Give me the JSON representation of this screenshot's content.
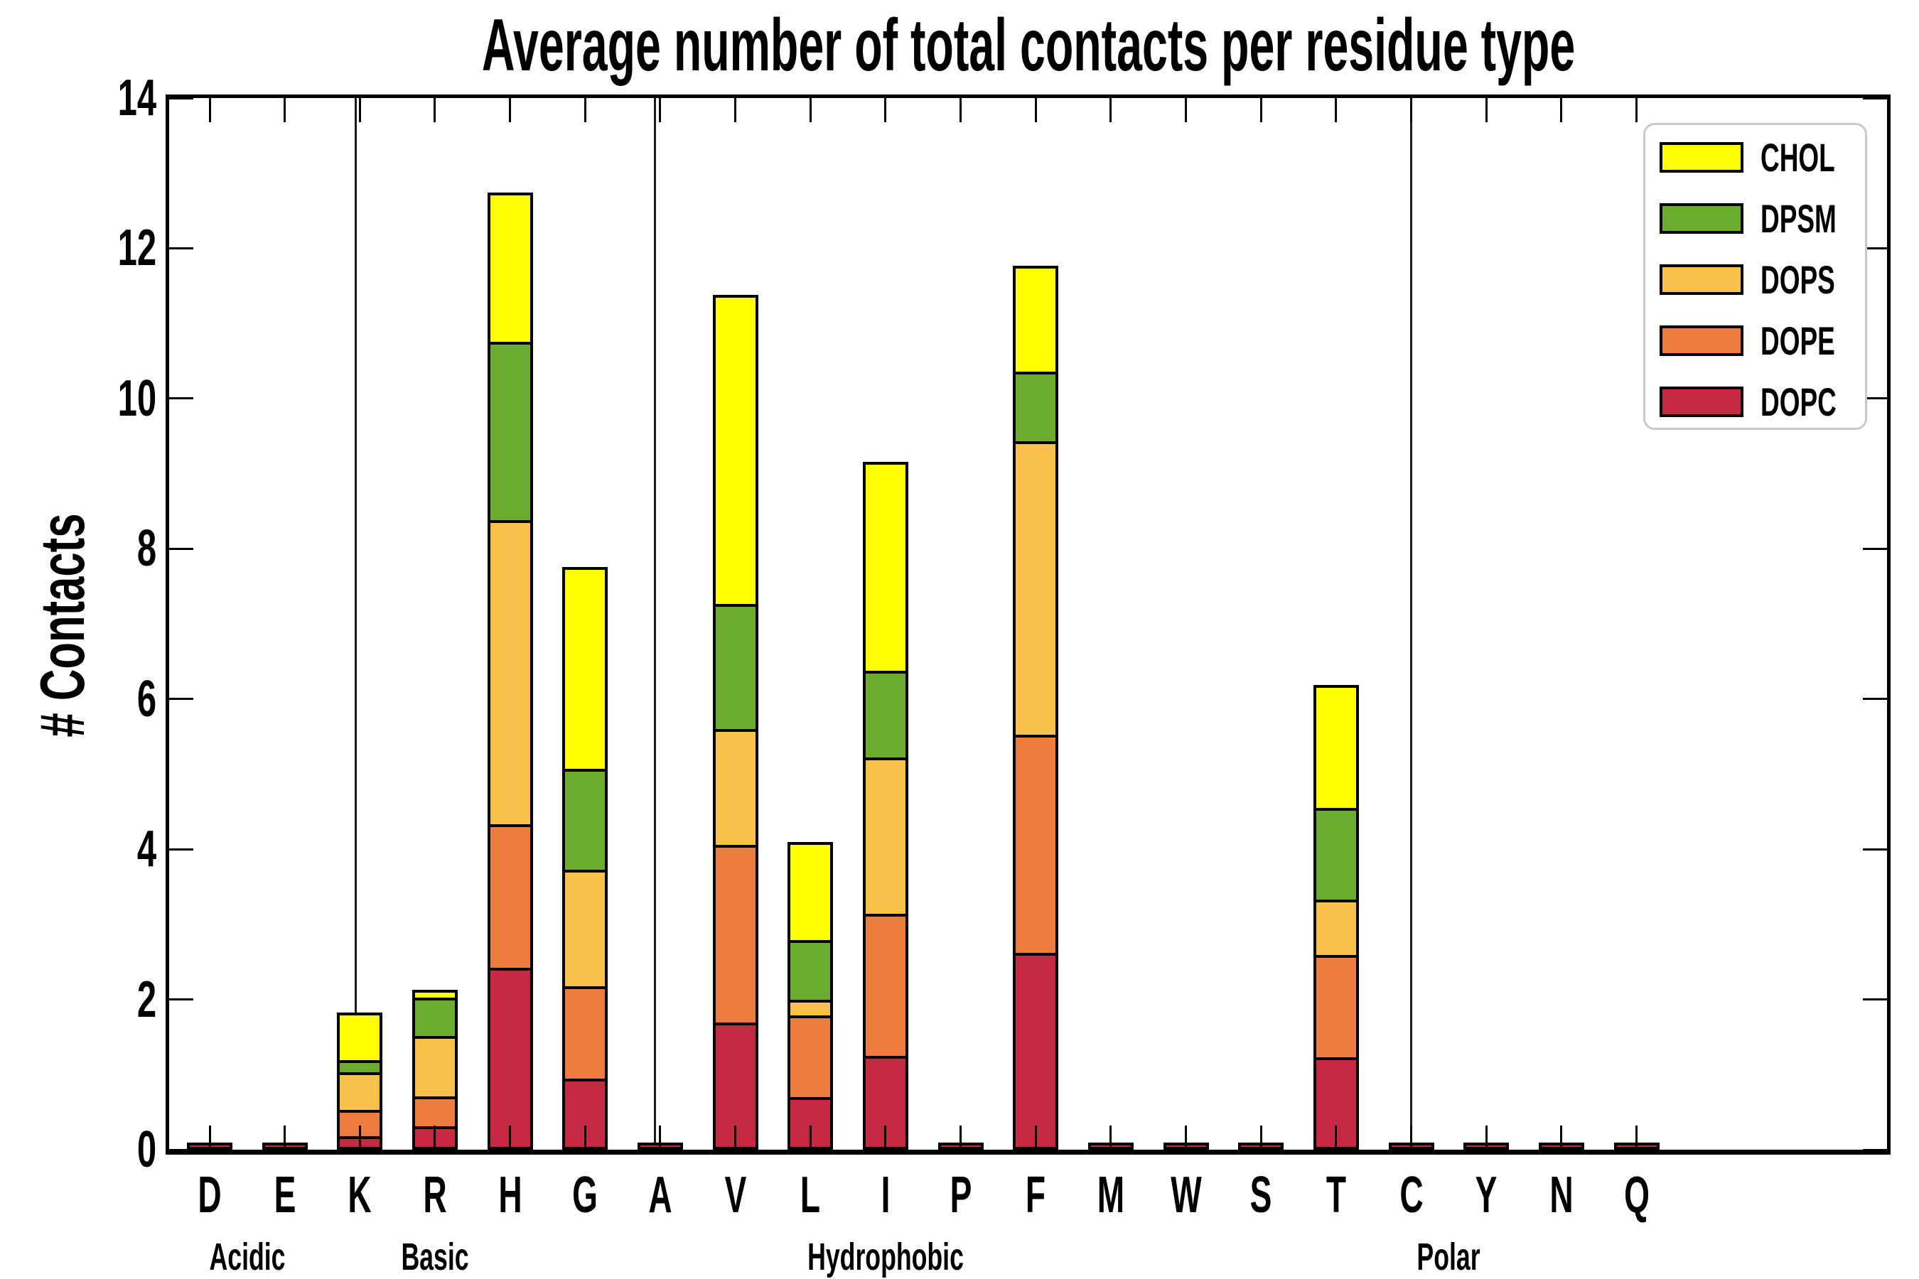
{
  "chart_data": {
    "type": "bar",
    "stacked": true,
    "title": "Average number of total contacts per residue type",
    "ylabel": "# Contacts",
    "xlabel": "",
    "ylim": [
      0,
      14
    ],
    "yticks": [
      0,
      2,
      4,
      6,
      8,
      10,
      12,
      14
    ],
    "grid": false,
    "legend_position": "upper right",
    "series_order_bottom_to_top": [
      "DOPC",
      "DOPE",
      "DOPS",
      "DPSM",
      "CHOL"
    ],
    "legend": [
      {
        "label": "CHOL",
        "color": "#FFFF00"
      },
      {
        "label": "DPSM",
        "color": "#6BAC2D"
      },
      {
        "label": "DOPS",
        "color": "#FAC14B"
      },
      {
        "label": "DOPE",
        "color": "#ED7D3E"
      },
      {
        "label": "DOPC",
        "color": "#C62A42"
      }
    ],
    "colors": {
      "CHOL": "#FFFF00",
      "DPSM": "#6BAC2D",
      "DOPS": "#FAC14B",
      "DOPE": "#ED7D3E",
      "DOPC": "#C62A42"
    },
    "groups": [
      {
        "label": "Acidic",
        "residues": [
          {
            "label": "D",
            "values": {
              "DOPC": 0.02,
              "DOPE": 0,
              "DOPS": 0,
              "DPSM": 0,
              "CHOL": 0
            }
          },
          {
            "label": "E",
            "values": {
              "DOPC": 0.02,
              "DOPE": 0,
              "DOPS": 0,
              "DPSM": 0,
              "CHOL": 0
            }
          }
        ]
      },
      {
        "label": "Basic",
        "residues": [
          {
            "label": "K",
            "values": {
              "DOPC": 0.14,
              "DOPE": 0.35,
              "DOPS": 0.5,
              "DPSM": 0.16,
              "CHOL": 0.6
            }
          },
          {
            "label": "R",
            "values": {
              "DOPC": 0.27,
              "DOPE": 0.4,
              "DOPS": 0.81,
              "DPSM": 0.51,
              "CHOL": 0.06
            }
          },
          {
            "label": "H",
            "values": {
              "DOPC": 2.38,
              "DOPE": 1.91,
              "DOPS": 4.05,
              "DPSM": 2.38,
              "CHOL": 1.95
            }
          }
        ]
      },
      {
        "label": "Hydrophobic",
        "residues": [
          {
            "label": "G",
            "values": {
              "DOPC": 0.91,
              "DOPE": 1.23,
              "DOPS": 1.55,
              "DPSM": 1.34,
              "CHOL": 2.65
            }
          },
          {
            "label": "A",
            "values": {
              "DOPC": 0.02,
              "DOPE": 0,
              "DOPS": 0,
              "DPSM": 0,
              "CHOL": 0
            }
          },
          {
            "label": "V",
            "values": {
              "DOPC": 1.66,
              "DOPE": 2.36,
              "DOPS": 1.54,
              "DPSM": 1.67,
              "CHOL": 4.07
            }
          },
          {
            "label": "L",
            "values": {
              "DOPC": 0.66,
              "DOPE": 1.09,
              "DOPS": 0.21,
              "DPSM": 0.79,
              "CHOL": 1.27
            }
          },
          {
            "label": "I",
            "values": {
              "DOPC": 1.21,
              "DOPE": 1.89,
              "DOPS": 2.08,
              "DPSM": 1.16,
              "CHOL": 2.74
            }
          },
          {
            "label": "P",
            "values": {
              "DOPC": 0.02,
              "DOPE": 0,
              "DOPS": 0,
              "DPSM": 0,
              "CHOL": 0
            }
          },
          {
            "label": "F",
            "values": {
              "DOPC": 2.58,
              "DOPE": 2.91,
              "DOPS": 3.9,
              "DPSM": 0.93,
              "CHOL": 1.37
            }
          },
          {
            "label": "M",
            "values": {
              "DOPC": 0.02,
              "DOPE": 0,
              "DOPS": 0,
              "DPSM": 0,
              "CHOL": 0
            }
          },
          {
            "label": "W",
            "values": {
              "DOPC": 0.02,
              "DOPE": 0,
              "DOPS": 0,
              "DPSM": 0,
              "CHOL": 0
            }
          }
        ]
      },
      {
        "label": "Polar",
        "residues": [
          {
            "label": "S",
            "values": {
              "DOPC": 0.02,
              "DOPE": 0,
              "DOPS": 0,
              "DPSM": 0,
              "CHOL": 0
            }
          },
          {
            "label": "T",
            "values": {
              "DOPC": 1.19,
              "DOPE": 1.36,
              "DOPS": 0.74,
              "DPSM": 1.22,
              "CHOL": 1.6
            }
          },
          {
            "label": "C",
            "values": {
              "DOPC": 0.02,
              "DOPE": 0,
              "DOPS": 0,
              "DPSM": 0,
              "CHOL": 0
            }
          },
          {
            "label": "Y",
            "values": {
              "DOPC": 0.02,
              "DOPE": 0,
              "DOPS": 0,
              "DPSM": 0,
              "CHOL": 0
            }
          },
          {
            "label": "N",
            "values": {
              "DOPC": 0.02,
              "DOPE": 0,
              "DOPS": 0,
              "DPSM": 0,
              "CHOL": 0
            }
          },
          {
            "label": "Q",
            "values": {
              "DOPC": 0.02,
              "DOPE": 0,
              "DOPS": 0,
              "DPSM": 0,
              "CHOL": 0
            }
          }
        ]
      }
    ]
  }
}
